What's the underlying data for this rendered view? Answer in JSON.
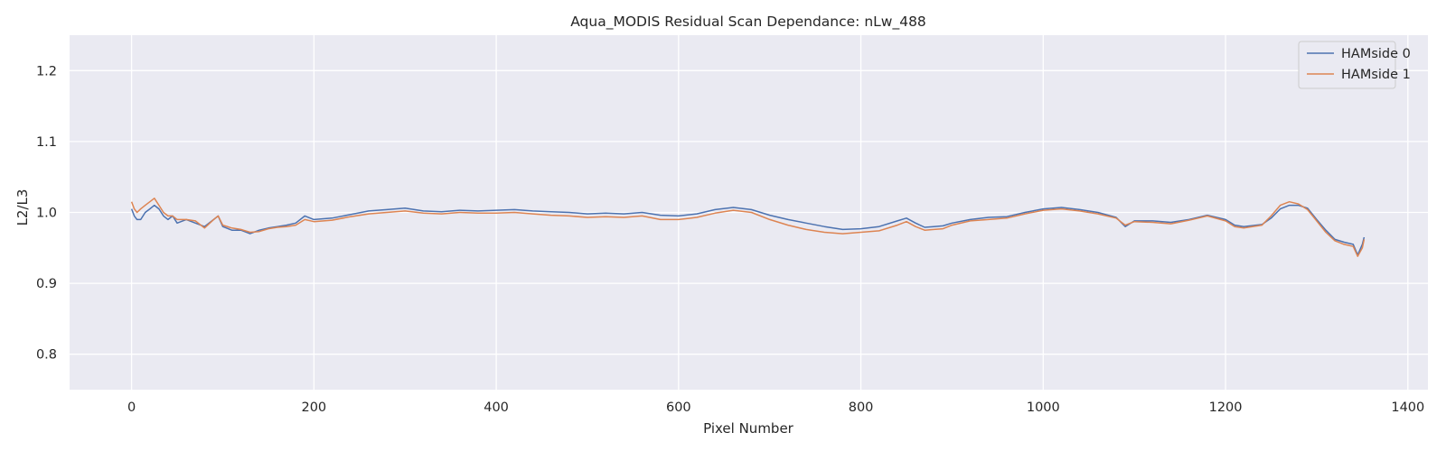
{
  "chart_data": {
    "type": "line",
    "title": "Aqua_MODIS Residual Scan Dependance: nLw_488",
    "xlabel": "Pixel Number",
    "ylabel": "L2/L3",
    "xlim": [
      -68,
      1422
    ],
    "ylim": [
      0.75,
      1.25
    ],
    "xticks": [
      0,
      200,
      400,
      600,
      800,
      1000,
      1200,
      1400
    ],
    "yticks": [
      0.8,
      0.9,
      1.0,
      1.1,
      1.2
    ],
    "xtick_labels": [
      "0",
      "200",
      "400",
      "600",
      "800",
      "1000",
      "1200",
      "1400"
    ],
    "ytick_labels": [
      "0.8",
      "0.9",
      "1.0",
      "1.1",
      "1.2"
    ],
    "grid": true,
    "legend": "top-right",
    "background": "#eaeaf2",
    "series": [
      {
        "name": "HAMside 0",
        "color": "#4c72b0",
        "x": [
          0,
          3,
          6,
          10,
          15,
          20,
          25,
          30,
          35,
          40,
          45,
          50,
          60,
          70,
          80,
          90,
          95,
          100,
          110,
          120,
          130,
          140,
          150,
          160,
          170,
          180,
          190,
          200,
          220,
          240,
          260,
          280,
          300,
          320,
          340,
          360,
          380,
          400,
          420,
          440,
          460,
          480,
          500,
          520,
          540,
          560,
          580,
          600,
          620,
          640,
          660,
          680,
          700,
          720,
          740,
          760,
          780,
          800,
          820,
          840,
          850,
          860,
          870,
          880,
          890,
          900,
          920,
          940,
          960,
          980,
          1000,
          1020,
          1040,
          1060,
          1080,
          1090,
          1100,
          1120,
          1140,
          1160,
          1170,
          1180,
          1200,
          1210,
          1220,
          1240,
          1250,
          1260,
          1270,
          1280,
          1290,
          1300,
          1310,
          1320,
          1330,
          1340,
          1345,
          1350,
          1352
        ],
        "y": [
          1.005,
          0.995,
          0.99,
          0.99,
          1.0,
          1.005,
          1.01,
          1.005,
          0.995,
          0.99,
          0.995,
          0.985,
          0.99,
          0.985,
          0.98,
          0.99,
          0.995,
          0.98,
          0.975,
          0.975,
          0.97,
          0.975,
          0.978,
          0.98,
          0.982,
          0.985,
          0.995,
          0.99,
          0.992,
          0.997,
          1.002,
          1.004,
          1.006,
          1.002,
          1.001,
          1.003,
          1.002,
          1.003,
          1.004,
          1.002,
          1.001,
          1.0,
          0.998,
          0.999,
          0.998,
          1.0,
          0.996,
          0.995,
          0.998,
          1.004,
          1.007,
          1.004,
          0.996,
          0.99,
          0.985,
          0.98,
          0.976,
          0.977,
          0.98,
          0.988,
          0.992,
          0.985,
          0.979,
          0.98,
          0.981,
          0.985,
          0.99,
          0.993,
          0.994,
          1.0,
          1.005,
          1.007,
          1.004,
          1.0,
          0.993,
          0.98,
          0.988,
          0.988,
          0.986,
          0.99,
          0.993,
          0.996,
          0.99,
          0.982,
          0.98,
          0.983,
          0.992,
          1.005,
          1.01,
          1.01,
          1.006,
          0.99,
          0.975,
          0.962,
          0.958,
          0.955,
          0.94,
          0.955,
          0.965
        ]
      },
      {
        "name": "HAMside 1",
        "color": "#dd8452",
        "x": [
          0,
          3,
          6,
          10,
          15,
          20,
          25,
          30,
          35,
          40,
          45,
          50,
          60,
          70,
          80,
          90,
          95,
          100,
          110,
          120,
          130,
          140,
          150,
          160,
          170,
          180,
          190,
          200,
          220,
          240,
          260,
          280,
          300,
          320,
          340,
          360,
          380,
          400,
          420,
          440,
          460,
          480,
          500,
          520,
          540,
          560,
          580,
          600,
          620,
          640,
          660,
          680,
          700,
          720,
          740,
          760,
          780,
          800,
          820,
          840,
          850,
          860,
          870,
          880,
          890,
          900,
          920,
          940,
          960,
          980,
          1000,
          1020,
          1040,
          1060,
          1080,
          1090,
          1100,
          1120,
          1140,
          1160,
          1170,
          1180,
          1200,
          1210,
          1220,
          1240,
          1250,
          1260,
          1270,
          1280,
          1290,
          1300,
          1310,
          1320,
          1330,
          1340,
          1345,
          1350,
          1352
        ],
        "y": [
          1.015,
          1.005,
          1.0,
          1.005,
          1.01,
          1.015,
          1.02,
          1.01,
          1.0,
          0.995,
          0.995,
          0.99,
          0.99,
          0.988,
          0.978,
          0.99,
          0.995,
          0.982,
          0.978,
          0.976,
          0.972,
          0.973,
          0.977,
          0.979,
          0.98,
          0.982,
          0.99,
          0.987,
          0.989,
          0.994,
          0.998,
          1.0,
          1.002,
          0.999,
          0.998,
          1.0,
          0.999,
          0.999,
          1.0,
          0.998,
          0.996,
          0.995,
          0.993,
          0.994,
          0.993,
          0.995,
          0.99,
          0.99,
          0.993,
          0.999,
          1.003,
          1.0,
          0.99,
          0.982,
          0.976,
          0.972,
          0.97,
          0.972,
          0.974,
          0.982,
          0.987,
          0.98,
          0.975,
          0.976,
          0.977,
          0.982,
          0.988,
          0.99,
          0.992,
          0.998,
          1.003,
          1.005,
          1.002,
          0.998,
          0.992,
          0.982,
          0.987,
          0.986,
          0.984,
          0.989,
          0.992,
          0.995,
          0.988,
          0.98,
          0.978,
          0.982,
          0.995,
          1.01,
          1.015,
          1.012,
          1.004,
          0.988,
          0.972,
          0.96,
          0.955,
          0.952,
          0.938,
          0.95,
          0.962
        ]
      }
    ]
  }
}
